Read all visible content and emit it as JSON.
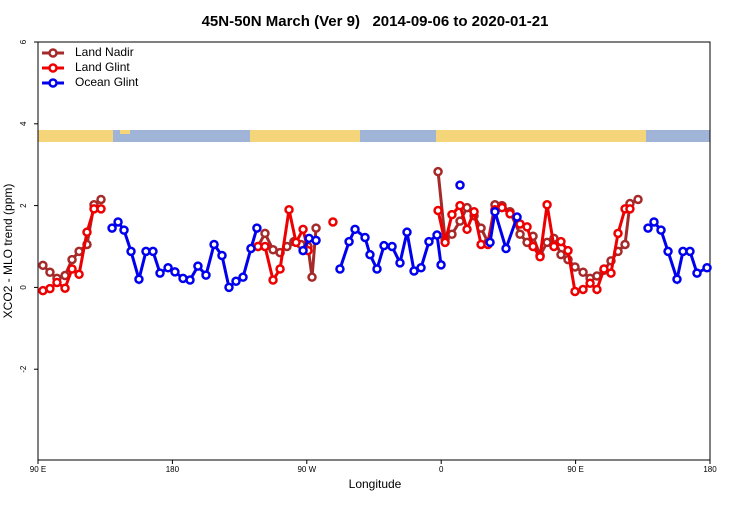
{
  "chart_data": {
    "type": "line",
    "title": "45N-50N March (Ver 9)   2014-09-06 to 2020-01-21",
    "x_label": "Longitude",
    "y_label": "XCO2 - MLO trend (ppm)",
    "xlim": [
      90,
      540
    ],
    "xticks": [
      {
        "value": 90,
        "label": "90 E"
      },
      {
        "value": 180,
        "label": "180"
      },
      {
        "value": 270,
        "label": "90 W"
      },
      {
        "value": 360,
        "label": "0"
      },
      {
        "value": 450,
        "label": "90 E"
      },
      {
        "value": 540,
        "label": "180"
      }
    ],
    "ylim": [
      -4.22,
      6
    ],
    "yticks": [
      -2,
      0,
      2,
      4,
      6
    ],
    "legend": "top-left",
    "series": [
      {
        "name": "Land Nadir",
        "color": "#a52a2a",
        "x": [
          93.3,
          98.0,
          102.7,
          108.1,
          112.8,
          117.5,
          122.8,
          127.5,
          132.2,
          180,
          237.3,
          242.0,
          247.4,
          252.1,
          256.7,
          261.4,
          266.1,
          270.8,
          273.5,
          276.2,
          320,
          357.9,
          362.6,
          367.2,
          372.6,
          377.3,
          382.0,
          386.7,
          391.3,
          396.0,
          400.7,
          406.1,
          412.8,
          417.5,
          421.5,
          426.2,
          430.9,
          435.5,
          440.2,
          444.9,
          449.6,
          455.0,
          459.7,
          464.3,
          469.0,
          473.7,
          478.4,
          483.1,
          486.4,
          491.8
        ],
        "values": [
          0.54,
          0.37,
          0.22,
          0.29,
          0.68,
          0.88,
          1.05,
          2.02,
          2.15,
          null,
          1.0,
          1.32,
          0.92,
          0.85,
          1.0,
          1.12,
          1.05,
          1.0,
          0.25,
          1.45,
          null,
          2.83,
          1.18,
          1.3,
          1.62,
          1.95,
          1.75,
          1.45,
          1.1,
          2.02,
          2.0,
          1.85,
          1.3,
          1.1,
          1.25,
          0.78,
          1.1,
          1.2,
          0.8,
          0.68,
          0.5,
          0.37,
          0.22,
          0.28,
          0.42,
          0.65,
          0.88,
          1.05,
          2.05,
          2.15
        ]
      },
      {
        "name": "Land Glint",
        "color": "#ee0000",
        "x": [
          93.3,
          98.0,
          102.7,
          108.1,
          112.8,
          117.5,
          122.8,
          127.5,
          132.2,
          180,
          237.3,
          242.0,
          247.4,
          252.1,
          258.1,
          262.8,
          267.5,
          270.8,
          280,
          287.5,
          320,
          357.9,
          362.6,
          367.2,
          372.6,
          377.3,
          382.0,
          386.7,
          391.3,
          396.0,
          400.7,
          406.1,
          412.8,
          417.5,
          421.5,
          426.2,
          430.9,
          435.5,
          440.2,
          444.9,
          449.6,
          455.0,
          459.7,
          464.3,
          469.0,
          473.7,
          478.4,
          483.1,
          486.4
        ],
        "values": [
          -0.08,
          -0.03,
          0.12,
          -0.02,
          0.45,
          0.32,
          1.35,
          1.92,
          1.92,
          null,
          1.0,
          1.0,
          0.18,
          0.45,
          1.9,
          1.1,
          1.42,
          0.9,
          null,
          1.6,
          null,
          1.88,
          1.1,
          1.78,
          2.0,
          1.42,
          1.85,
          1.05,
          1.05,
          1.9,
          1.95,
          1.8,
          1.55,
          1.48,
          1.0,
          0.75,
          2.02,
          1.0,
          1.12,
          0.9,
          -0.1,
          -0.05,
          0.1,
          -0.05,
          0.45,
          0.35,
          1.32,
          1.92,
          1.92
        ]
      },
      {
        "name": "Ocean Glint",
        "color": "#0000ee",
        "x": [
          139.6,
          143.6,
          147.6,
          152.3,
          157.6,
          162.3,
          167.0,
          171.7,
          177.1,
          181.7,
          187.1,
          191.8,
          197.1,
          202.5,
          207.9,
          213.2,
          217.9,
          222.6,
          227.3,
          232.6,
          236.6,
          250,
          267.5,
          271.5,
          276.2,
          285,
          292.2,
          298.3,
          302.3,
          309.0,
          312.3,
          317.0,
          321.7,
          327.1,
          332.4,
          337.1,
          341.8,
          346.5,
          351.8,
          357.2,
          359.9,
          365,
          372.6,
          385,
          392.7,
          396.0,
          403.4,
          410.8,
          450,
          498.5,
          502.5,
          507.2,
          511.9,
          517.9,
          521.9,
          526.6,
          531.3,
          538.0
        ],
        "values": [
          1.45,
          1.6,
          1.4,
          0.88,
          0.2,
          0.88,
          0.88,
          0.35,
          0.48,
          0.38,
          0.22,
          0.18,
          0.52,
          0.3,
          1.05,
          0.78,
          0.0,
          0.15,
          0.25,
          0.95,
          1.45,
          null,
          0.9,
          1.2,
          1.15,
          null,
          0.45,
          1.12,
          1.42,
          1.22,
          0.8,
          0.45,
          1.02,
          1.0,
          0.6,
          1.35,
          0.4,
          0.48,
          1.12,
          1.28,
          0.55,
          null,
          2.5,
          null,
          1.1,
          1.85,
          0.95,
          1.72,
          null,
          1.45,
          1.6,
          1.4,
          0.88,
          0.2,
          0.88,
          0.88,
          0.35,
          0.48
        ]
      }
    ]
  }
}
